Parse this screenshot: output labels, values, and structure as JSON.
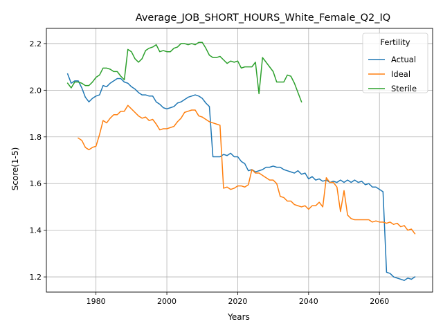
{
  "chart_data": {
    "type": "line",
    "title": "Average_JOB_SHORT_HOURS_White_Female_Q2_IQ",
    "xlabel": "Years",
    "ylabel": "Score(1-5)",
    "xlim": [
      1966,
      2075
    ],
    "ylim": [
      1.135,
      2.265
    ],
    "x_ticks": [
      1980,
      2000,
      2020,
      2040,
      2060
    ],
    "y_ticks": [
      1.2,
      1.4,
      1.6,
      1.8,
      2.0,
      2.2
    ],
    "grid": true,
    "legend": {
      "title": "Fertility",
      "placement": "top-right"
    },
    "series": [
      {
        "name": "Actual",
        "color": "#1f77b4",
        "points": [
          [
            1972,
            2.07
          ],
          [
            1973,
            2.03
          ],
          [
            1974,
            2.04
          ],
          [
            1975,
            2.04
          ],
          [
            1976,
            2.01
          ],
          [
            1977,
            1.97
          ],
          [
            1978,
            1.95
          ],
          [
            1979,
            1.965
          ],
          [
            1980,
            1.975
          ],
          [
            1981,
            1.98
          ],
          [
            1982,
            2.02
          ],
          [
            1983,
            2.015
          ],
          [
            1984,
            2.03
          ],
          [
            1985,
            2.04
          ],
          [
            1986,
            2.05
          ],
          [
            1987,
            2.05
          ],
          [
            1988,
            2.035
          ],
          [
            1989,
            2.03
          ],
          [
            1990,
            2.015
          ],
          [
            1991,
            2.005
          ],
          [
            1992,
            1.99
          ],
          [
            1993,
            1.98
          ],
          [
            1994,
            1.98
          ],
          [
            1995,
            1.975
          ],
          [
            1996,
            1.975
          ],
          [
            1997,
            1.95
          ],
          [
            1998,
            1.94
          ],
          [
            1999,
            1.925
          ],
          [
            2000,
            1.92
          ],
          [
            2001,
            1.925
          ],
          [
            2002,
            1.93
          ],
          [
            2003,
            1.945
          ],
          [
            2004,
            1.95
          ],
          [
            2005,
            1.96
          ],
          [
            2006,
            1.97
          ],
          [
            2007,
            1.975
          ],
          [
            2008,
            1.98
          ],
          [
            2009,
            1.975
          ],
          [
            2010,
            1.965
          ],
          [
            2011,
            1.945
          ],
          [
            2012,
            1.93
          ],
          [
            2013,
            1.715
          ],
          [
            2014,
            1.715
          ],
          [
            2015,
            1.715
          ],
          [
            2016,
            1.725
          ],
          [
            2017,
            1.72
          ],
          [
            2018,
            1.73
          ],
          [
            2019,
            1.715
          ],
          [
            2020,
            1.715
          ],
          [
            2021,
            1.695
          ],
          [
            2022,
            1.685
          ],
          [
            2023,
            1.655
          ],
          [
            2024,
            1.66
          ],
          [
            2025,
            1.65
          ],
          [
            2026,
            1.655
          ],
          [
            2027,
            1.66
          ],
          [
            2028,
            1.67
          ],
          [
            2029,
            1.67
          ],
          [
            2030,
            1.675
          ],
          [
            2031,
            1.67
          ],
          [
            2032,
            1.67
          ],
          [
            2033,
            1.66
          ],
          [
            2034,
            1.655
          ],
          [
            2035,
            1.65
          ],
          [
            2036,
            1.645
          ],
          [
            2037,
            1.655
          ],
          [
            2038,
            1.64
          ],
          [
            2039,
            1.645
          ],
          [
            2040,
            1.62
          ],
          [
            2041,
            1.63
          ],
          [
            2042,
            1.615
          ],
          [
            2043,
            1.62
          ],
          [
            2044,
            1.61
          ],
          [
            2045,
            1.615
          ],
          [
            2046,
            1.605
          ],
          [
            2047,
            1.61
          ],
          [
            2048,
            1.605
          ],
          [
            2049,
            1.615
          ],
          [
            2050,
            1.605
          ],
          [
            2051,
            1.615
          ],
          [
            2052,
            1.605
          ],
          [
            2053,
            1.615
          ],
          [
            2054,
            1.605
          ],
          [
            2055,
            1.61
          ],
          [
            2056,
            1.595
          ],
          [
            2057,
            1.6
          ],
          [
            2058,
            1.585
          ],
          [
            2059,
            1.585
          ],
          [
            2060,
            1.575
          ],
          [
            2061,
            1.565
          ],
          [
            2062,
            1.22
          ],
          [
            2063,
            1.215
          ],
          [
            2064,
            1.2
          ],
          [
            2065,
            1.195
          ],
          [
            2066,
            1.19
          ],
          [
            2067,
            1.185
          ],
          [
            2068,
            1.195
          ],
          [
            2069,
            1.19
          ],
          [
            2070,
            1.2
          ]
        ]
      },
      {
        "name": "Ideal",
        "color": "#ff7f0e",
        "points": [
          [
            1975,
            1.795
          ],
          [
            1976,
            1.785
          ],
          [
            1977,
            1.755
          ],
          [
            1978,
            1.745
          ],
          [
            1979,
            1.755
          ],
          [
            1980,
            1.76
          ],
          [
            1981,
            1.81
          ],
          [
            1982,
            1.87
          ],
          [
            1983,
            1.86
          ],
          [
            1984,
            1.88
          ],
          [
            1985,
            1.895
          ],
          [
            1986,
            1.895
          ],
          [
            1987,
            1.91
          ],
          [
            1988,
            1.91
          ],
          [
            1989,
            1.935
          ],
          [
            1990,
            1.92
          ],
          [
            1991,
            1.905
          ],
          [
            1992,
            1.89
          ],
          [
            1993,
            1.88
          ],
          [
            1994,
            1.885
          ],
          [
            1995,
            1.87
          ],
          [
            1996,
            1.875
          ],
          [
            1997,
            1.855
          ],
          [
            1998,
            1.83
          ],
          [
            1999,
            1.835
          ],
          [
            2000,
            1.835
          ],
          [
            2001,
            1.84
          ],
          [
            2002,
            1.845
          ],
          [
            2003,
            1.865
          ],
          [
            2004,
            1.88
          ],
          [
            2005,
            1.905
          ],
          [
            2006,
            1.91
          ],
          [
            2007,
            1.915
          ],
          [
            2008,
            1.915
          ],
          [
            2009,
            1.89
          ],
          [
            2010,
            1.885
          ],
          [
            2011,
            1.875
          ],
          [
            2012,
            1.865
          ],
          [
            2013,
            1.86
          ],
          [
            2014,
            1.855
          ],
          [
            2015,
            1.85
          ],
          [
            2016,
            1.58
          ],
          [
            2017,
            1.585
          ],
          [
            2018,
            1.575
          ],
          [
            2019,
            1.58
          ],
          [
            2020,
            1.59
          ],
          [
            2021,
            1.59
          ],
          [
            2022,
            1.585
          ],
          [
            2023,
            1.595
          ],
          [
            2024,
            1.66
          ],
          [
            2025,
            1.645
          ],
          [
            2026,
            1.645
          ],
          [
            2027,
            1.635
          ],
          [
            2028,
            1.625
          ],
          [
            2029,
            1.615
          ],
          [
            2030,
            1.615
          ],
          [
            2031,
            1.6
          ],
          [
            2032,
            1.545
          ],
          [
            2033,
            1.54
          ],
          [
            2034,
            1.525
          ],
          [
            2035,
            1.525
          ],
          [
            2036,
            1.51
          ],
          [
            2037,
            1.505
          ],
          [
            2038,
            1.5
          ],
          [
            2039,
            1.505
          ],
          [
            2040,
            1.49
          ],
          [
            2041,
            1.505
          ],
          [
            2042,
            1.505
          ],
          [
            2043,
            1.52
          ],
          [
            2044,
            1.5
          ],
          [
            2045,
            1.625
          ],
          [
            2046,
            1.605
          ],
          [
            2047,
            1.605
          ],
          [
            2048,
            1.585
          ],
          [
            2049,
            1.48
          ],
          [
            2050,
            1.57
          ],
          [
            2051,
            1.465
          ],
          [
            2052,
            1.45
          ],
          [
            2053,
            1.445
          ],
          [
            2054,
            1.445
          ],
          [
            2055,
            1.445
          ],
          [
            2056,
            1.445
          ],
          [
            2057,
            1.445
          ],
          [
            2058,
            1.435
          ],
          [
            2059,
            1.44
          ],
          [
            2060,
            1.435
          ],
          [
            2061,
            1.435
          ],
          [
            2062,
            1.43
          ],
          [
            2063,
            1.435
          ],
          [
            2064,
            1.425
          ],
          [
            2065,
            1.43
          ],
          [
            2066,
            1.415
          ],
          [
            2067,
            1.42
          ],
          [
            2068,
            1.4
          ],
          [
            2069,
            1.405
          ],
          [
            2070,
            1.385
          ]
        ]
      },
      {
        "name": "Sterile",
        "color": "#2ca02c",
        "points": [
          [
            1972,
            2.03
          ],
          [
            1973,
            2.01
          ],
          [
            1974,
            2.035
          ],
          [
            1975,
            2.035
          ],
          [
            1976,
            2.03
          ],
          [
            1977,
            2.02
          ],
          [
            1978,
            2.02
          ],
          [
            1979,
            2.035
          ],
          [
            1980,
            2.055
          ],
          [
            1981,
            2.065
          ],
          [
            1982,
            2.095
          ],
          [
            1983,
            2.095
          ],
          [
            1984,
            2.09
          ],
          [
            1985,
            2.08
          ],
          [
            1986,
            2.08
          ],
          [
            1987,
            2.06
          ],
          [
            1988,
            2.045
          ],
          [
            1989,
            2.175
          ],
          [
            1990,
            2.165
          ],
          [
            1991,
            2.135
          ],
          [
            1992,
            2.12
          ],
          [
            1993,
            2.135
          ],
          [
            1994,
            2.17
          ],
          [
            1995,
            2.18
          ],
          [
            1996,
            2.185
          ],
          [
            1997,
            2.195
          ],
          [
            1998,
            2.165
          ],
          [
            1999,
            2.17
          ],
          [
            2000,
            2.165
          ],
          [
            2001,
            2.165
          ],
          [
            2002,
            2.18
          ],
          [
            2003,
            2.185
          ],
          [
            2004,
            2.2
          ],
          [
            2005,
            2.2
          ],
          [
            2006,
            2.195
          ],
          [
            2007,
            2.2
          ],
          [
            2008,
            2.195
          ],
          [
            2009,
            2.205
          ],
          [
            2010,
            2.205
          ],
          [
            2011,
            2.18
          ],
          [
            2012,
            2.15
          ],
          [
            2013,
            2.14
          ],
          [
            2014,
            2.14
          ],
          [
            2015,
            2.145
          ],
          [
            2016,
            2.13
          ],
          [
            2017,
            2.115
          ],
          [
            2018,
            2.125
          ],
          [
            2019,
            2.12
          ],
          [
            2020,
            2.125
          ],
          [
            2021,
            2.095
          ],
          [
            2022,
            2.1
          ],
          [
            2023,
            2.1
          ],
          [
            2024,
            2.1
          ],
          [
            2025,
            2.12
          ],
          [
            2026,
            1.985
          ],
          [
            2027,
            2.14
          ],
          [
            2028,
            2.12
          ],
          [
            2029,
            2.1
          ],
          [
            2030,
            2.08
          ],
          [
            2031,
            2.035
          ],
          [
            2032,
            2.035
          ],
          [
            2033,
            2.035
          ],
          [
            2034,
            2.065
          ],
          [
            2035,
            2.06
          ],
          [
            2036,
            2.03
          ],
          [
            2037,
            1.99
          ],
          [
            2038,
            1.95
          ]
        ]
      }
    ]
  }
}
